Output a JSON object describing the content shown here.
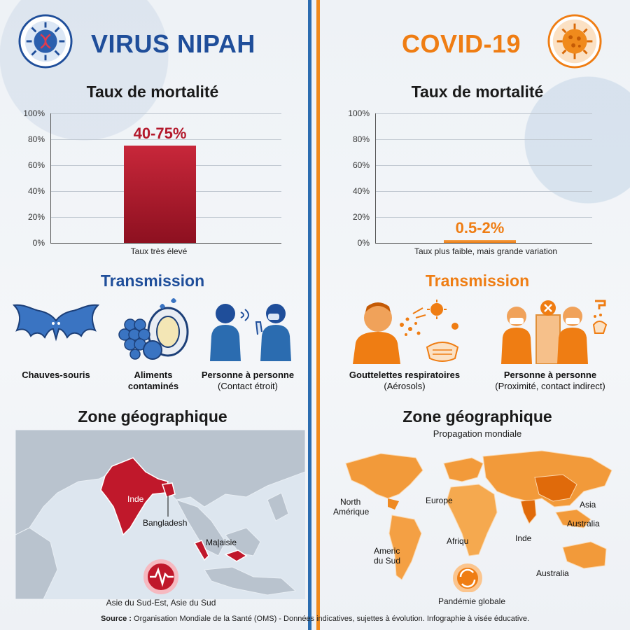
{
  "nipah": {
    "title": "VIRUS NIPAH",
    "mortality_heading": "Taux de mortalité",
    "chart_data": {
      "type": "bar",
      "categories": [
        "Taux très élevé"
      ],
      "values": [
        75
      ],
      "range_low": 40,
      "ylim": [
        0,
        100
      ],
      "yticks": [
        "100%",
        "80%",
        "60%",
        "40%",
        "20%",
        "0%"
      ],
      "value_label": "40-75%",
      "xlabel": "Taux très élevé"
    },
    "transmission_heading": "Transmission",
    "transmission_items": [
      {
        "bold": "Chauves-souris",
        "sub": ""
      },
      {
        "bold": "Aliments contaminés",
        "sub": ""
      },
      {
        "bold": "Personne à personne",
        "sub": "(Contact étroit)"
      }
    ],
    "geo_heading": "Zone géographique",
    "map_labels": {
      "india": "Inde",
      "bangladesh": "Bangladesh",
      "malaysia": "Malaisie"
    },
    "region_caption": "Asie du Sud-Est, Asie du Sud"
  },
  "covid": {
    "title": "COVID-19",
    "mortality_heading": "Taux de mortalité",
    "chart_data": {
      "type": "bar",
      "categories": [
        "Taux plus faible, mais grande variation"
      ],
      "values": [
        2
      ],
      "range_low": 0.5,
      "ylim": [
        0,
        100
      ],
      "yticks": [
        "100%",
        "80%",
        "60%",
        "40%",
        "20%",
        "0%"
      ],
      "value_label": "0.5-2%",
      "xlabel": "Taux plus faible, mais grande variation"
    },
    "transmission_heading": "Transmission",
    "transmission_items": [
      {
        "bold": "Gouttelettes respiratoires",
        "sub": "(Aérosols)"
      },
      {
        "bold": "Personne à personne",
        "sub": "(Proximité, contact indirect)"
      }
    ],
    "geo_heading": "Zone géographique",
    "geo_subheading": "Propagation mondiale",
    "map_labels": {
      "north_america_1": "North",
      "north_america_2": "Amérique",
      "europe": "Europe",
      "asia": "Asia",
      "australia_1": "Australia",
      "india": "Inde",
      "africa": "Afriqu",
      "south_america_1": "Americ",
      "south_america_2": "du Sud",
      "australia_2": "Australia"
    },
    "region_caption": "Pandémie globale"
  },
  "source_label": "Source :",
  "source_text": "Organisation Mondiale de la Santé (OMS) - Données indicatives, sujettes à évolution. Infographie à visée éducative.",
  "colors": {
    "nipah_blue": "#1f4e9a",
    "covid_orange": "#ef7d13",
    "nipah_red": "#b3192c"
  }
}
